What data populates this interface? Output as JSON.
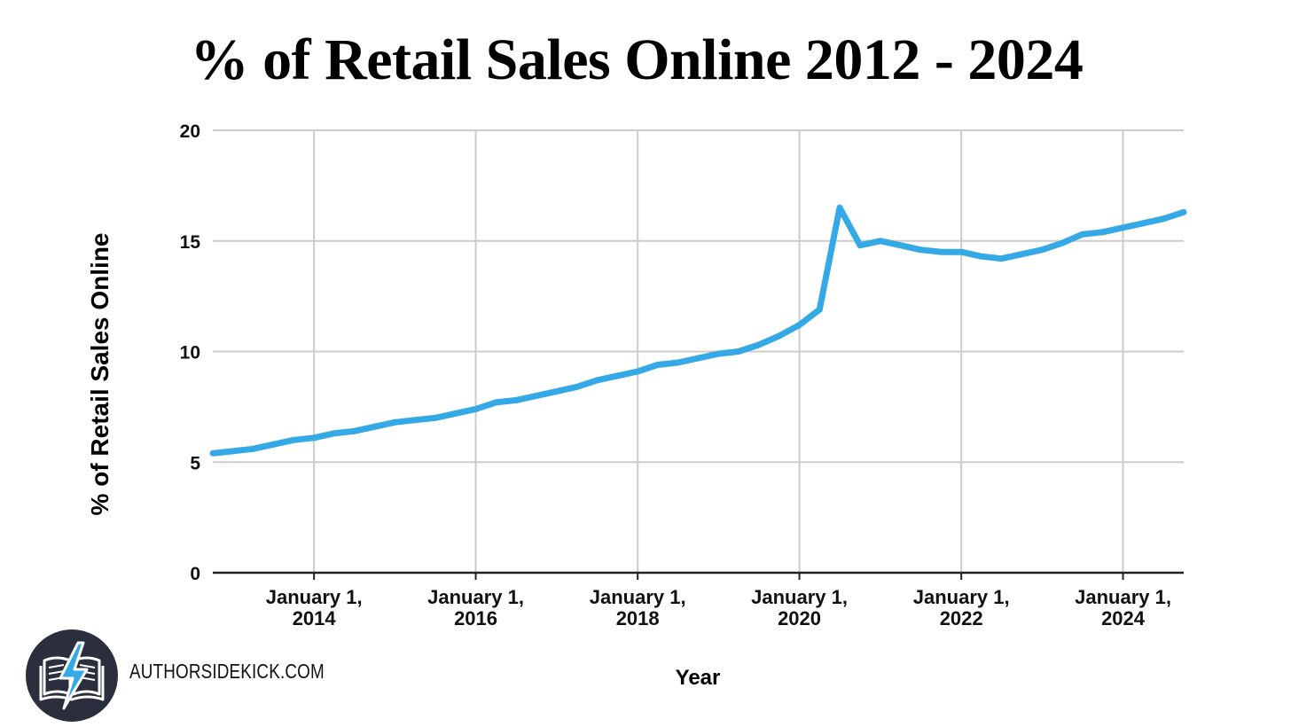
{
  "brand": {
    "text": "AUTHORSIDEKICK.COM",
    "logo_icon": "book-lightning-icon"
  },
  "colors": {
    "line": "#35a9e6",
    "grid": "#cccccc",
    "axis": "#222222",
    "logo_bg": "#2b2f3d"
  },
  "chart_data": {
    "type": "line",
    "title": "% of Retail Sales Online 2012 - 2024",
    "xlabel": "Year",
    "ylabel": "% of Retail Sales Online",
    "ylim": [
      0,
      20
    ],
    "yticks": [
      "0",
      "5",
      "10",
      "15",
      "20"
    ],
    "xlim": [
      "2012-10-01",
      "2024-10-01"
    ],
    "xticks": [
      {
        "date": "2014-01-01",
        "line1": "January 1,",
        "line2": "2014"
      },
      {
        "date": "2016-01-01",
        "line1": "January 1,",
        "line2": "2016"
      },
      {
        "date": "2018-01-01",
        "line1": "January 1,",
        "line2": "2018"
      },
      {
        "date": "2020-01-01",
        "line1": "January 1,",
        "line2": "2020"
      },
      {
        "date": "2022-01-01",
        "line1": "January 1,",
        "line2": "2022"
      },
      {
        "date": "2024-01-01",
        "line1": "January 1,",
        "line2": "2024"
      }
    ],
    "grid": true,
    "series": [
      {
        "x": [
          "2012-10-01",
          "2013-01-01",
          "2013-04-01",
          "2013-07-01",
          "2013-10-01",
          "2014-01-01",
          "2014-04-01",
          "2014-07-01",
          "2014-10-01",
          "2015-01-01",
          "2015-04-01",
          "2015-07-01",
          "2015-10-01",
          "2016-01-01",
          "2016-04-01",
          "2016-07-01",
          "2016-10-01",
          "2017-01-01",
          "2017-04-01",
          "2017-07-01",
          "2017-10-01",
          "2018-01-01",
          "2018-04-01",
          "2018-07-01",
          "2018-10-01",
          "2019-01-01",
          "2019-04-01",
          "2019-07-01",
          "2019-10-01",
          "2020-01-01",
          "2020-04-01",
          "2020-07-01",
          "2020-10-01",
          "2021-01-01",
          "2021-04-01",
          "2021-07-01",
          "2021-10-01",
          "2022-01-01",
          "2022-04-01",
          "2022-07-01",
          "2022-10-01",
          "2023-01-01",
          "2023-04-01",
          "2023-07-01",
          "2023-10-01",
          "2024-01-01",
          "2024-04-01",
          "2024-07-01",
          "2024-10-01"
        ],
        "values": [
          5.4,
          5.5,
          5.6,
          5.8,
          6.0,
          6.1,
          6.3,
          6.4,
          6.6,
          6.8,
          6.9,
          7.0,
          7.2,
          7.4,
          7.7,
          7.8,
          8.0,
          8.2,
          8.4,
          8.7,
          8.9,
          9.1,
          9.4,
          9.5,
          9.7,
          9.9,
          10.0,
          10.3,
          10.7,
          11.2,
          11.9,
          16.5,
          14.8,
          15.0,
          14.8,
          14.6,
          14.5,
          14.5,
          14.3,
          14.2,
          14.4,
          14.6,
          14.9,
          15.3,
          15.4,
          15.6,
          15.8,
          16.0,
          16.3
        ]
      }
    ]
  }
}
